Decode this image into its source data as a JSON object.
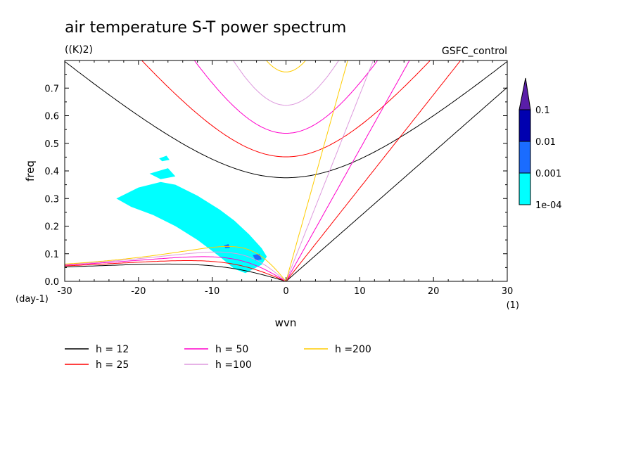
{
  "chart_data": {
    "type": "contour",
    "title": "air temperature S-T power spectrum",
    "units": "((K)2)",
    "experiment": "GSFC_control",
    "xlabel": "wvn",
    "ylabel": "freq",
    "x_unit": "(1)",
    "y_unit": "(day-1)",
    "xlim": [
      -30,
      30
    ],
    "ylim": [
      0,
      0.8
    ],
    "x_ticks": [
      -30,
      -20,
      -10,
      0,
      10,
      20,
      30
    ],
    "x_tick_labels": [
      "-30",
      "-20",
      "-10",
      "0",
      "10",
      "20",
      "30"
    ],
    "y_ticks": [
      0,
      0.1,
      0.2,
      0.3,
      0.4,
      0.5,
      0.6,
      0.7
    ],
    "y_tick_labels": [
      "0.0",
      "0.1",
      "0.2",
      "0.3",
      "0.4",
      "0.5",
      "0.6",
      "0.7"
    ],
    "colorbar": {
      "labels": [
        "0.1",
        "0.01",
        "0.001",
        "1e-04"
      ],
      "colors": [
        "#5a1ea8",
        "#0000b0",
        "#1a6cff",
        "#00ffff"
      ]
    },
    "dispersion_curves": [
      {
        "name": "h = 12",
        "h": 12,
        "color": "#000000"
      },
      {
        "name": "h = 25",
        "h": 25,
        "color": "#ff0000"
      },
      {
        "name": "h = 50",
        "h": 50,
        "color": "#ff00cc"
      },
      {
        "name": "h =100",
        "h": 100,
        "color": "#dd99dd"
      },
      {
        "name": "h =200",
        "h": 200,
        "color": "#ffcc00"
      }
    ],
    "shaded_regions": [
      {
        "level": "1e-04",
        "color": "#00ffff",
        "polygon": [
          [
            -23,
            0.3
          ],
          [
            -20,
            0.34
          ],
          [
            -17,
            0.36
          ],
          [
            -15,
            0.35
          ],
          [
            -12,
            0.31
          ],
          [
            -9,
            0.26
          ],
          [
            -7,
            0.22
          ],
          [
            -5,
            0.17
          ],
          [
            -3.3,
            0.12
          ],
          [
            -2.6,
            0.09
          ],
          [
            -3.3,
            0.06
          ],
          [
            -5.5,
            0.03
          ],
          [
            -7,
            0.045
          ],
          [
            -9,
            0.09
          ],
          [
            -12,
            0.15
          ],
          [
            -15,
            0.2
          ],
          [
            -18,
            0.24
          ],
          [
            -21,
            0.27
          ]
        ]
      },
      {
        "level": "1e-04",
        "color": "#00ffff",
        "polygon": [
          [
            -17.2,
            0.445
          ],
          [
            -16.2,
            0.455
          ],
          [
            -15.8,
            0.44
          ],
          [
            -16.8,
            0.435
          ]
        ]
      },
      {
        "level": "1e-04",
        "color": "#00ffff",
        "polygon": [
          [
            -18.5,
            0.39
          ],
          [
            -16,
            0.41
          ],
          [
            -15,
            0.38
          ],
          [
            -17,
            0.37
          ]
        ]
      },
      {
        "level": "0.001",
        "color": "#1a6cff",
        "polygon": [
          [
            -4.5,
            0.095
          ],
          [
            -3.6,
            0.1
          ],
          [
            -3.3,
            0.08
          ],
          [
            -4.1,
            0.075
          ]
        ]
      },
      {
        "level": "0.001",
        "color": "#1a6cff",
        "polygon": [
          [
            -8.4,
            0.13
          ],
          [
            -7.8,
            0.135
          ],
          [
            -7.6,
            0.122
          ],
          [
            -8.2,
            0.12
          ]
        ]
      }
    ]
  }
}
